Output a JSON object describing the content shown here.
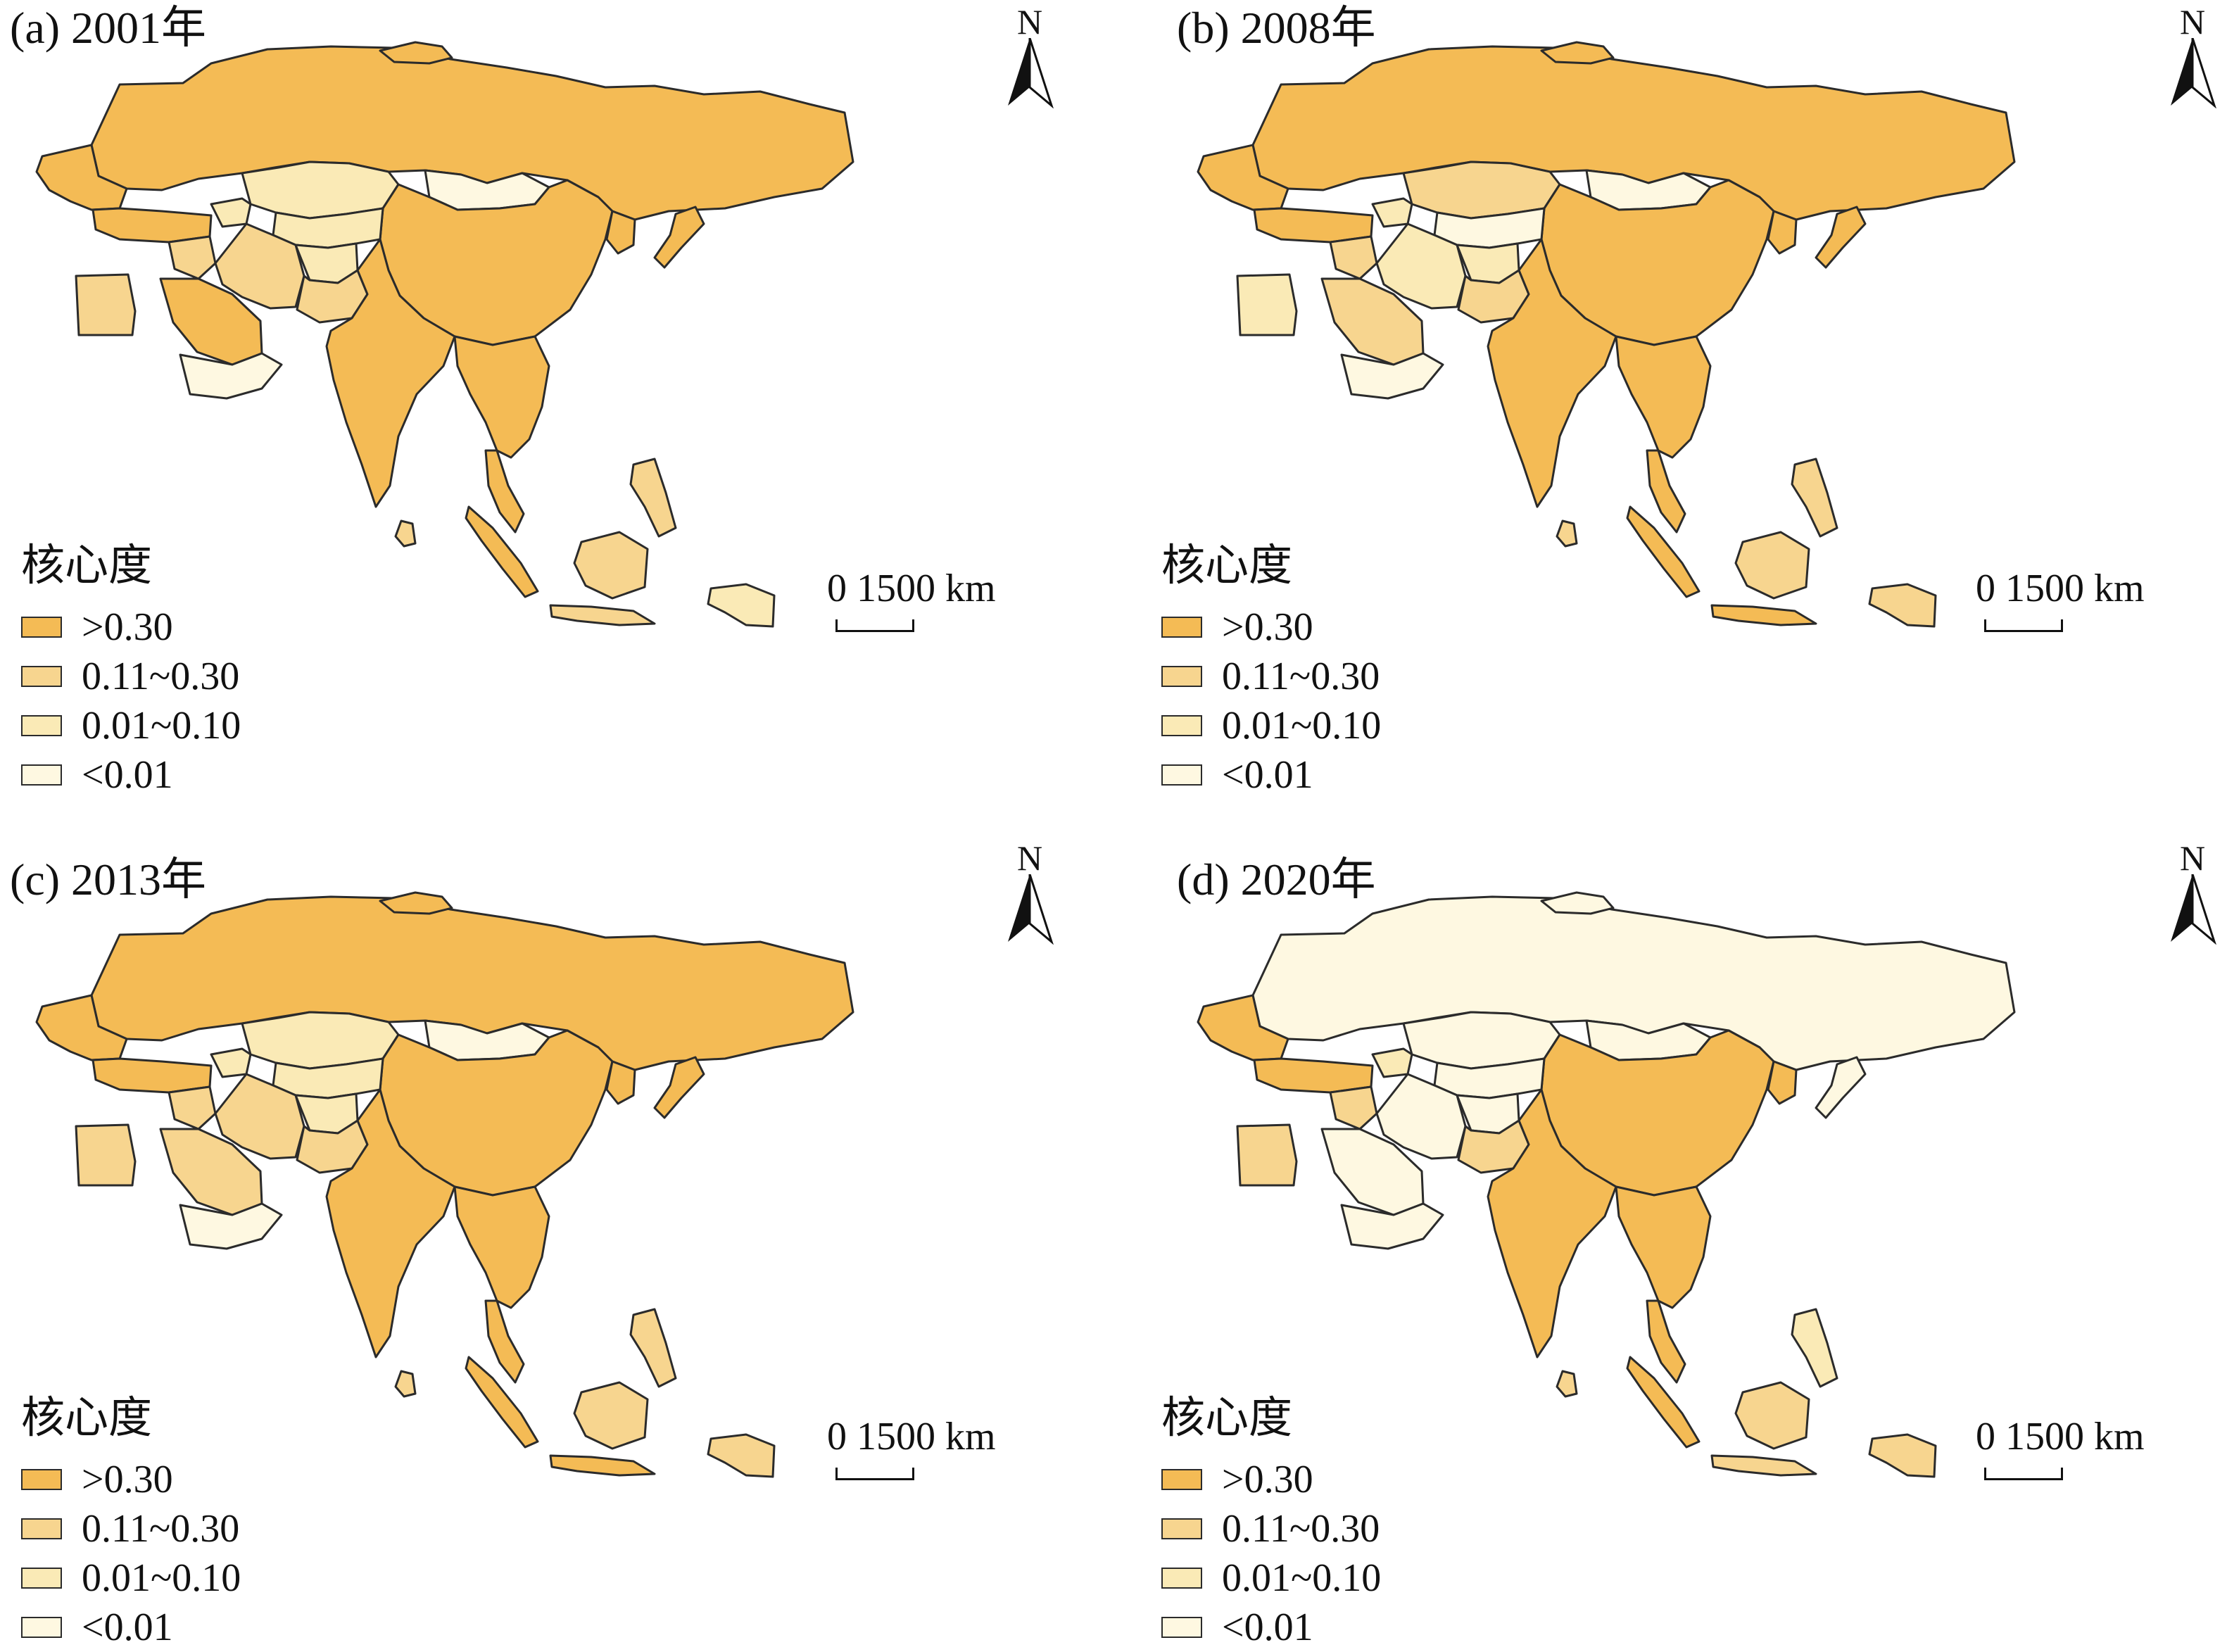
{
  "legend_classes": [
    {
      "key": "c4",
      "label": ">0.30",
      "color": "#f4bb55"
    },
    {
      "key": "c3",
      "label": "0.11~0.30",
      "color": "#f7d58f"
    },
    {
      "key": "c2",
      "label": "0.01~0.10",
      "color": "#faeab6"
    },
    {
      "key": "c1",
      "label": "<0.01",
      "color": "#fef8e1"
    }
  ],
  "legend_title": "核心度",
  "north_label": "N",
  "scale_label": "0  1500 km",
  "boundary_color": "#2b2b2b",
  "panels": [
    {
      "id": "a",
      "title": "(a) 2001年",
      "classes": {
        "russia": "c4",
        "kazakhstan": "c2",
        "mongolia": "c1",
        "china": "c4",
        "central_asia": "c2",
        "caucasus": "c2",
        "turkey": "c4",
        "eastern_europe": "c4",
        "iran": "c3",
        "afghanistan": "c2",
        "pakistan": "c3",
        "india": "c4",
        "saudi": "c4",
        "egypt": "c3",
        "levant": "c3",
        "yemen_oman": "c1",
        "indochina": "c4",
        "malay_peninsula": "c4",
        "sumatra": "c4",
        "borneo": "c3",
        "java": "c3",
        "philippines": "c3",
        "new_guinea": "c2",
        "sri_lanka": "c3",
        "japan": "c4",
        "korea": "c4",
        "novaya_zemlya": "c4"
      }
    },
    {
      "id": "b",
      "title": "(b) 2008年",
      "classes": {
        "russia": "c4",
        "kazakhstan": "c3",
        "mongolia": "c1",
        "china": "c4",
        "central_asia": "c1",
        "caucasus": "c2",
        "turkey": "c4",
        "eastern_europe": "c4",
        "iran": "c2",
        "afghanistan": "c2",
        "pakistan": "c3",
        "india": "c4",
        "saudi": "c3",
        "egypt": "c2",
        "levant": "c3",
        "yemen_oman": "c1",
        "indochina": "c4",
        "malay_peninsula": "c4",
        "sumatra": "c4",
        "borneo": "c3",
        "java": "c4",
        "philippines": "c3",
        "new_guinea": "c3",
        "sri_lanka": "c3",
        "japan": "c4",
        "korea": "c4",
        "novaya_zemlya": "c4"
      }
    },
    {
      "id": "c",
      "title": "(c) 2013年",
      "classes": {
        "russia": "c4",
        "kazakhstan": "c2",
        "mongolia": "c1",
        "china": "c4",
        "central_asia": "c2",
        "caucasus": "c2",
        "turkey": "c4",
        "eastern_europe": "c4",
        "iran": "c3",
        "afghanistan": "c2",
        "pakistan": "c3",
        "india": "c4",
        "saudi": "c3",
        "egypt": "c3",
        "levant": "c3",
        "yemen_oman": "c1",
        "indochina": "c4",
        "malay_peninsula": "c4",
        "sumatra": "c4",
        "borneo": "c3",
        "java": "c4",
        "philippines": "c3",
        "new_guinea": "c3",
        "sri_lanka": "c3",
        "japan": "c4",
        "korea": "c4",
        "novaya_zemlya": "c4"
      }
    },
    {
      "id": "d",
      "title": "(d) 2020年",
      "classes": {
        "russia": "c1",
        "kazakhstan": "c1",
        "mongolia": "c1",
        "china": "c4",
        "central_asia": "c1",
        "caucasus": "c2",
        "turkey": "c4",
        "eastern_europe": "c4",
        "iran": "c1",
        "afghanistan": "c1",
        "pakistan": "c3",
        "india": "c4",
        "saudi": "c1",
        "egypt": "c3",
        "levant": "c3",
        "yemen_oman": "c1",
        "indochina": "c4",
        "malay_peninsula": "c4",
        "sumatra": "c4",
        "borneo": "c3",
        "java": "c3",
        "philippines": "c2",
        "new_guinea": "c3",
        "sri_lanka": "c3",
        "japan": "c1",
        "korea": "c4",
        "novaya_zemlya": "c1"
      }
    }
  ]
}
